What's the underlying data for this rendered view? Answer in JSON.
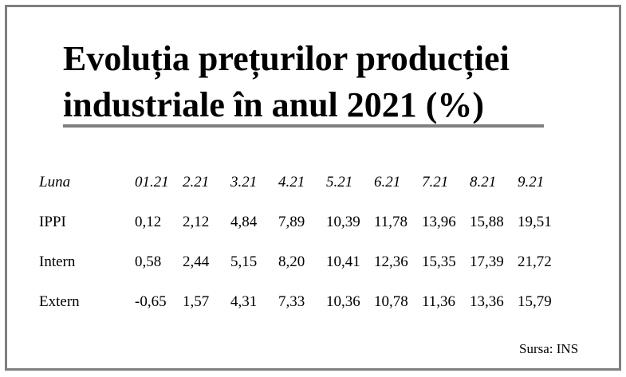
{
  "title_line1": "Evoluția prețurilor producției",
  "title_line2": "industriale în anul 2021 (%)",
  "table": {
    "header_label": "Luna",
    "months": [
      "01.21",
      "2.21",
      "3.21",
      "4.21",
      "5.21",
      "6.21",
      "7.21",
      "8.21",
      "9.21"
    ],
    "rows": [
      {
        "label": "IPPI",
        "values": [
          "0,12",
          "2,12",
          "4,84",
          "7,89",
          "10,39",
          "11,78",
          "13,96",
          "15,88",
          "19,51"
        ]
      },
      {
        "label": "Intern",
        "values": [
          "0,58",
          "2,44",
          "5,15",
          "8,20",
          "10,41",
          "12,36",
          "15,35",
          "17,39",
          "21,72"
        ]
      },
      {
        "label": "Extern",
        "values": [
          "-0,65",
          "1,57",
          "4,31",
          "7,33",
          "10,36",
          "10,78",
          "11,36",
          "13,36",
          "15,79"
        ]
      }
    ]
  },
  "source": "Sursa: INS",
  "colors": {
    "frame": "#7f7f7f",
    "rule": "#7f7f7f",
    "text": "#000000"
  }
}
